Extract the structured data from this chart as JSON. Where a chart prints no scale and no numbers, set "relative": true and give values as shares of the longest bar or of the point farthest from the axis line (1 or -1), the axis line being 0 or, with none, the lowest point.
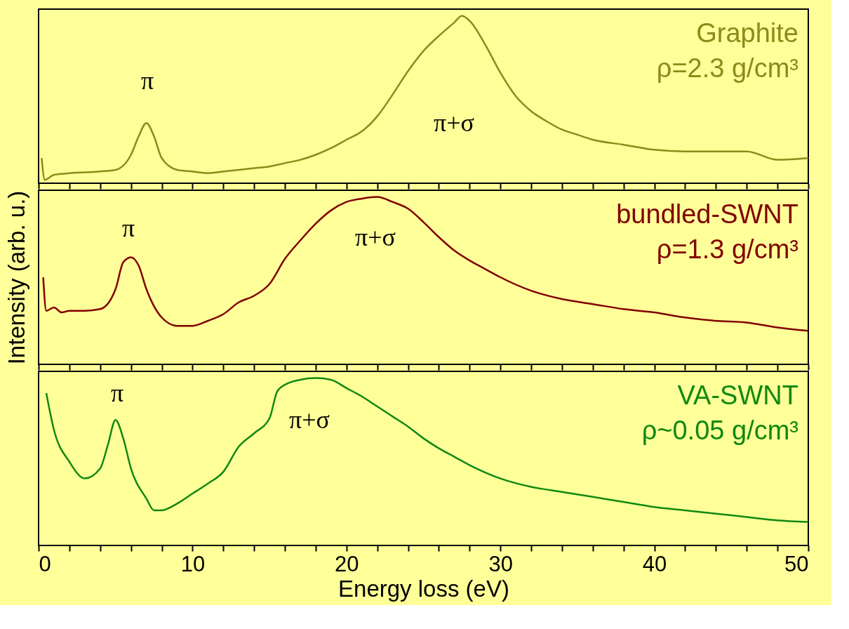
{
  "chart_data": [
    {
      "type": "line",
      "relative": true,
      "xlim": [
        0,
        50
      ],
      "xticks": [
        0,
        {
          "value": 2,
          "label": null
        },
        {
          "value": 4,
          "label": null
        },
        {
          "value": 6,
          "label": null
        },
        {
          "value": 8,
          "label": null
        },
        10,
        {
          "value": 12,
          "label": null
        },
        {
          "value": 14,
          "label": null
        },
        {
          "value": 16,
          "label": null
        },
        {
          "value": 18,
          "label": null
        },
        20,
        {
          "value": 22,
          "label": null
        },
        {
          "value": 24,
          "label": null
        },
        {
          "value": 26,
          "label": null
        },
        {
          "value": 28,
          "label": null
        },
        30,
        {
          "value": 32,
          "label": null
        },
        {
          "value": 34,
          "label": null
        },
        {
          "value": 36,
          "label": null
        },
        {
          "value": 38,
          "label": null
        },
        40,
        {
          "value": 42,
          "label": null
        },
        {
          "value": 44,
          "label": null
        },
        {
          "value": 46,
          "label": null
        },
        {
          "value": 48,
          "label": null
        },
        50
      ],
      "tick_labels": false,
      "x": [
        0.2,
        0.4,
        1,
        2,
        4,
        5,
        6,
        6.5,
        7,
        7.5,
        8,
        9,
        10,
        11,
        12,
        14,
        15,
        16,
        17,
        18,
        19,
        20,
        21,
        22,
        23,
        24,
        25,
        26,
        27,
        27.5,
        28,
        29,
        30,
        31,
        32,
        33,
        34,
        35,
        36,
        38,
        40,
        42,
        44,
        46,
        48,
        50
      ],
      "series": [
        {
          "name": "Graphite",
          "color": "#8b8b1a",
          "values": [
            0.15,
            0.02,
            0.05,
            0.06,
            0.07,
            0.08,
            0.17,
            0.28,
            0.36,
            0.28,
            0.15,
            0.08,
            0.07,
            0.06,
            0.07,
            0.09,
            0.1,
            0.12,
            0.14,
            0.17,
            0.21,
            0.26,
            0.31,
            0.4,
            0.53,
            0.67,
            0.79,
            0.88,
            0.96,
            1.0,
            0.97,
            0.83,
            0.66,
            0.52,
            0.43,
            0.37,
            0.32,
            0.29,
            0.26,
            0.23,
            0.2,
            0.19,
            0.19,
            0.19,
            0.14,
            0.15
          ]
        }
      ],
      "annotations": [
        "π",
        "π+σ",
        "ρ=2.3 g/cm³"
      ]
    },
    {
      "type": "line",
      "relative": true,
      "ylabel": "Intensity (arb. u.)",
      "xlim": [
        0,
        50
      ],
      "xticks": [
        0,
        {
          "value": 2,
          "label": null
        },
        {
          "value": 4,
          "label": null
        },
        {
          "value": 6,
          "label": null
        },
        {
          "value": 8,
          "label": null
        },
        10,
        {
          "value": 12,
          "label": null
        },
        {
          "value": 14,
          "label": null
        },
        {
          "value": 16,
          "label": null
        },
        {
          "value": 18,
          "label": null
        },
        20,
        {
          "value": 22,
          "label": null
        },
        {
          "value": 24,
          "label": null
        },
        {
          "value": 26,
          "label": null
        },
        {
          "value": 28,
          "label": null
        },
        30,
        {
          "value": 32,
          "label": null
        },
        {
          "value": 34,
          "label": null
        },
        {
          "value": 36,
          "label": null
        },
        {
          "value": 38,
          "label": null
        },
        40,
        {
          "value": 42,
          "label": null
        },
        {
          "value": 44,
          "label": null
        },
        {
          "value": 46,
          "label": null
        },
        {
          "value": 48,
          "label": null
        },
        50
      ],
      "tick_labels": false,
      "x": [
        0.3,
        0.5,
        1,
        1.5,
        2,
        3,
        4,
        5,
        5.5,
        6,
        6.5,
        7,
        8,
        9,
        10,
        11,
        12,
        13,
        14,
        15,
        16,
        17,
        18,
        19,
        20,
        21,
        22,
        23,
        24,
        25,
        26,
        27,
        28,
        29,
        30,
        32,
        34,
        36,
        38,
        40,
        42,
        44,
        46,
        48,
        50
      ],
      "series": [
        {
          "name": "bundled-SWNT",
          "color": "#800000",
          "values": [
            0.52,
            0.32,
            0.34,
            0.31,
            0.32,
            0.32,
            0.33,
            0.45,
            0.61,
            0.64,
            0.59,
            0.45,
            0.28,
            0.23,
            0.23,
            0.26,
            0.3,
            0.37,
            0.41,
            0.48,
            0.63,
            0.74,
            0.84,
            0.92,
            0.97,
            0.99,
            1.0,
            0.97,
            0.93,
            0.85,
            0.76,
            0.68,
            0.62,
            0.57,
            0.52,
            0.44,
            0.39,
            0.36,
            0.33,
            0.31,
            0.28,
            0.26,
            0.25,
            0.22,
            0.2
          ]
        }
      ],
      "annotations": [
        "π",
        "π+σ",
        "ρ=1.3 g/cm³"
      ]
    },
    {
      "type": "line",
      "relative": true,
      "xlabel": "Energy loss (eV)",
      "xlim": [
        0,
        50
      ],
      "xticks": [
        0,
        {
          "value": 2,
          "label": null
        },
        {
          "value": 4,
          "label": null
        },
        {
          "value": 6,
          "label": null
        },
        {
          "value": 8,
          "label": null
        },
        10,
        {
          "value": 12,
          "label": null
        },
        {
          "value": 14,
          "label": null
        },
        {
          "value": 16,
          "label": null
        },
        {
          "value": 18,
          "label": null
        },
        20,
        {
          "value": 22,
          "label": null
        },
        {
          "value": 24,
          "label": null
        },
        {
          "value": 26,
          "label": null
        },
        {
          "value": 28,
          "label": null
        },
        30,
        {
          "value": 32,
          "label": null
        },
        {
          "value": 34,
          "label": null
        },
        {
          "value": 36,
          "label": null
        },
        {
          "value": 38,
          "label": null
        },
        40,
        {
          "value": 42,
          "label": null
        },
        {
          "value": 44,
          "label": null
        },
        {
          "value": 46,
          "label": null
        },
        {
          "value": 48,
          "label": null
        },
        50
      ],
      "tick_labels": "x",
      "x": [
        0.5,
        1,
        2,
        3,
        4,
        4.5,
        5,
        5.5,
        6,
        7,
        7.5,
        8,
        9,
        10,
        11,
        12,
        13,
        14,
        15,
        15.5,
        16,
        17,
        18,
        19,
        20,
        21,
        22,
        23,
        24,
        25,
        26,
        27,
        28,
        30,
        32,
        34,
        36,
        38,
        40,
        42,
        44,
        46,
        48,
        50
      ],
      "series": [
        {
          "name": "VA-SWNT",
          "color": "#108810",
          "values": [
            0.91,
            0.69,
            0.5,
            0.4,
            0.46,
            0.6,
            0.75,
            0.64,
            0.46,
            0.28,
            0.21,
            0.21,
            0.25,
            0.31,
            0.37,
            0.44,
            0.59,
            0.67,
            0.76,
            0.92,
            0.96,
            0.99,
            1.0,
            0.99,
            0.94,
            0.89,
            0.83,
            0.77,
            0.71,
            0.64,
            0.58,
            0.53,
            0.48,
            0.4,
            0.35,
            0.32,
            0.29,
            0.26,
            0.23,
            0.21,
            0.19,
            0.17,
            0.15,
            0.14
          ]
        }
      ],
      "annotations": [
        "π",
        "π+σ",
        "ρ~0.05 g/cm³"
      ]
    }
  ]
}
